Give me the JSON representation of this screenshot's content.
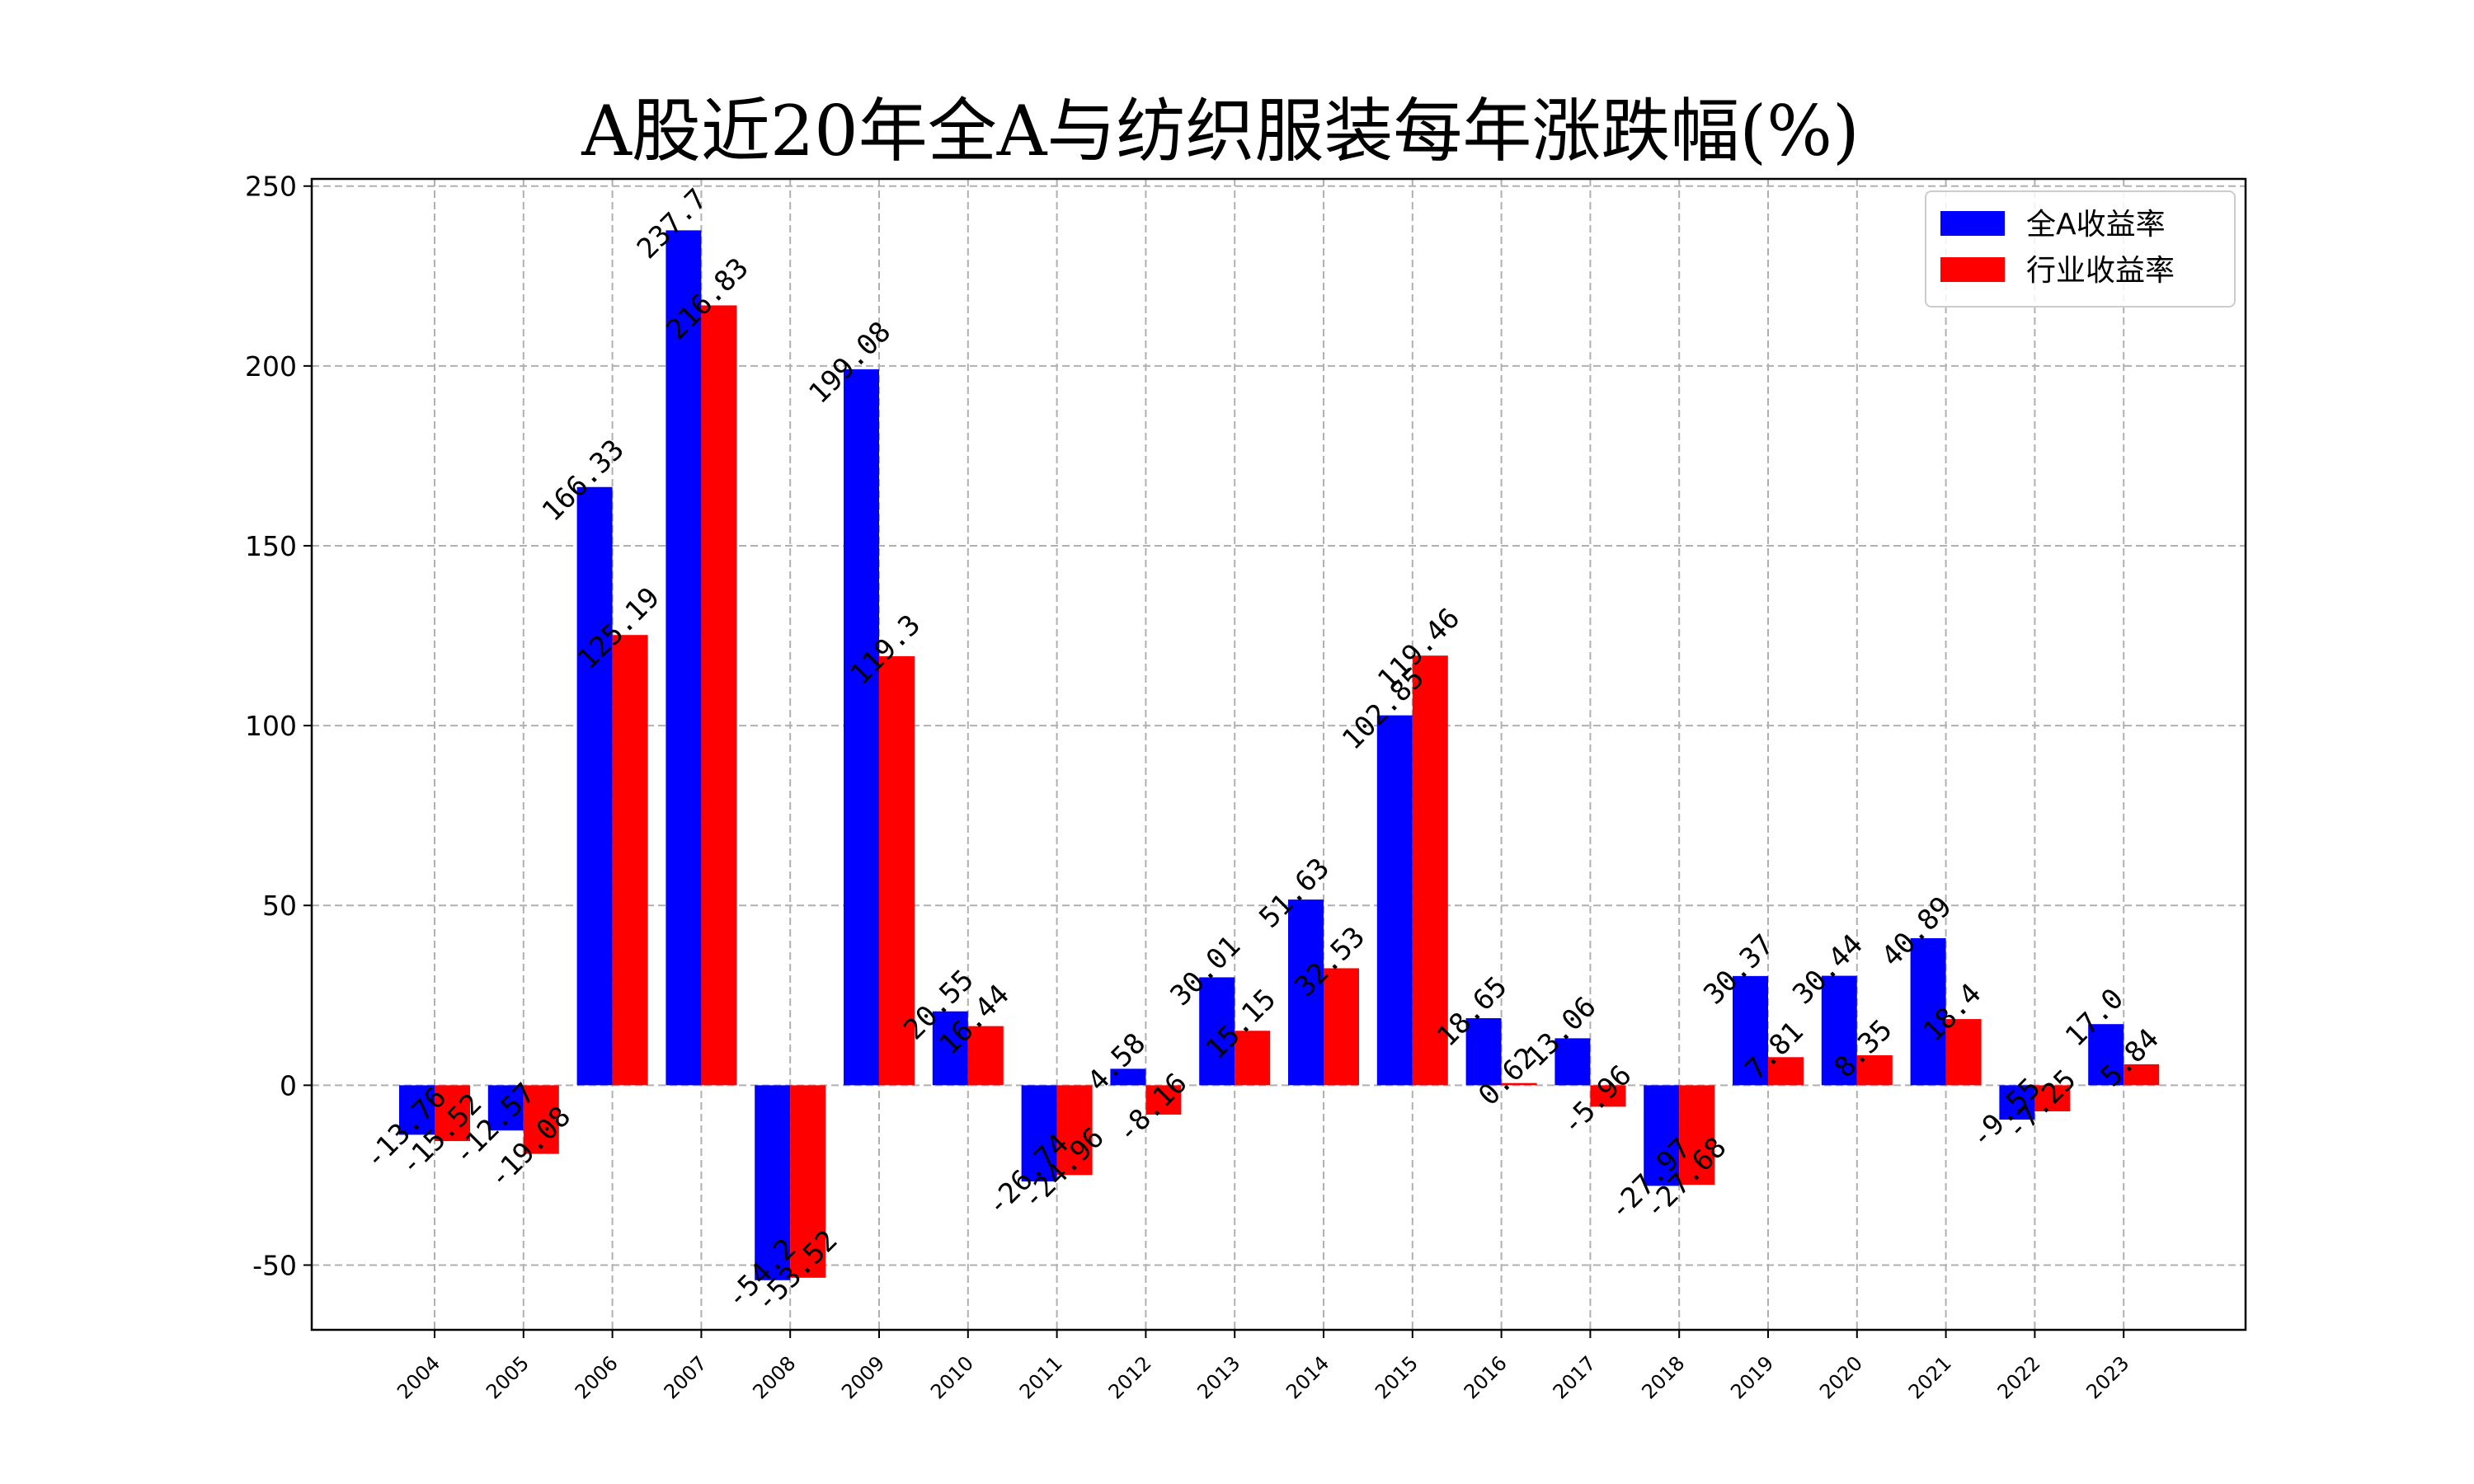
{
  "chart_data": {
    "type": "bar",
    "title": "A股近20年全A与纺织服装每年涨跌幅(%)",
    "xlabel": "",
    "ylabel": "",
    "categories": [
      "2004",
      "2005",
      "2006",
      "2007",
      "2008",
      "2009",
      "2010",
      "2011",
      "2012",
      "2013",
      "2014",
      "2015",
      "2016",
      "2017",
      "2018",
      "2019",
      "2020",
      "2021",
      "2022",
      "2023"
    ],
    "series": [
      {
        "name": "全A收益率",
        "color": "#0000ff",
        "values": [
          -13.76,
          -12.57,
          166.33,
          237.7,
          -54.2,
          199.08,
          20.55,
          -26.74,
          4.58,
          30.01,
          51.63,
          102.85,
          18.65,
          13.06,
          -27.97,
          30.37,
          30.44,
          40.89,
          -9.55,
          17.0
        ],
        "labels": [
          "-13.76",
          "-12.57",
          "166.33",
          "237.7",
          "-54.2",
          "199.08",
          "20.55",
          "-26.74",
          "4.58",
          "30.01",
          "51.63",
          "102.85",
          "18.65",
          "13.06",
          "-27.97",
          "30.37",
          "30.44",
          "40.89",
          "-9.55",
          "17.0"
        ]
      },
      {
        "name": "行业收益率",
        "color": "#ff0000",
        "values": [
          -15.52,
          -19.08,
          125.19,
          216.83,
          -53.52,
          119.3,
          16.44,
          -24.96,
          -8.16,
          15.15,
          32.53,
          119.46,
          0.62,
          -5.96,
          -27.68,
          7.81,
          8.35,
          18.4,
          -7.25,
          5.84
        ],
        "labels": [
          "-15.52",
          "-19.08",
          "125.19",
          "216.83",
          "-53.52",
          "119.3",
          "16.44",
          "-24.96",
          "-8.16",
          "15.15",
          "32.53",
          "119.46",
          "0.62",
          "-5.96",
          "-27.68",
          "7.81",
          "8.35",
          "18.4",
          "-7.25",
          "5.84"
        ]
      }
    ],
    "ylim": [
      -68,
      252
    ],
    "yticks": [
      -50,
      0,
      50,
      100,
      150,
      200,
      250
    ],
    "grid": true,
    "legend_position": "top-right"
  }
}
